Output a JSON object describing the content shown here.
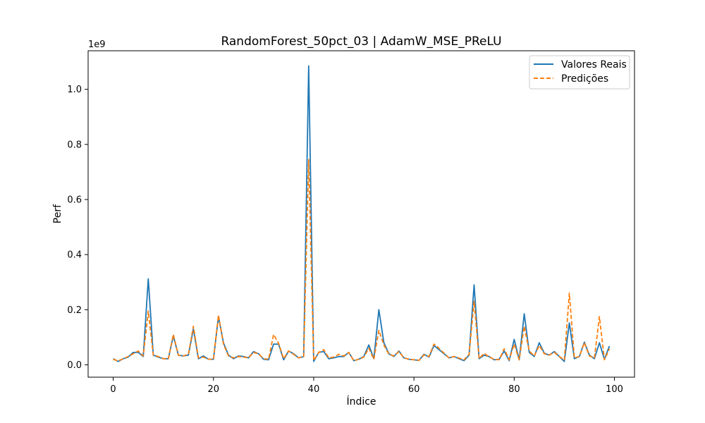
{
  "chart_data": {
    "type": "line",
    "title": "RandomForest_50pct_03 | AdamW_MSE_PReLU",
    "xlabel": "Índice",
    "ylabel": "Perf",
    "y_offset_label": "1e9",
    "xlim": [
      -5,
      104
    ],
    "ylim": [
      -0.045,
      1.14
    ],
    "x_ticks": [
      0,
      20,
      40,
      60,
      80,
      100
    ],
    "x_tick_labels": [
      "0",
      "20",
      "40",
      "60",
      "80",
      "100"
    ],
    "y_ticks": [
      0.0,
      0.2,
      0.4,
      0.6,
      0.8,
      1.0
    ],
    "y_tick_labels": [
      "0.0",
      "0.2",
      "0.4",
      "0.6",
      "0.8",
      "1.0"
    ],
    "grid": false,
    "legend_position": "top-right",
    "colors": {
      "real": "#1f77b4",
      "pred": "#ff7f0e"
    },
    "x": [
      0,
      1,
      2,
      3,
      4,
      5,
      6,
      7,
      8,
      9,
      10,
      11,
      12,
      13,
      14,
      15,
      16,
      17,
      18,
      19,
      20,
      21,
      22,
      23,
      24,
      25,
      26,
      27,
      28,
      29,
      30,
      31,
      32,
      33,
      34,
      35,
      36,
      37,
      38,
      39,
      40,
      41,
      42,
      43,
      44,
      45,
      46,
      47,
      48,
      49,
      50,
      51,
      52,
      53,
      54,
      55,
      56,
      57,
      58,
      59,
      60,
      61,
      62,
      63,
      64,
      65,
      66,
      67,
      68,
      69,
      70,
      71,
      72,
      73,
      74,
      75,
      76,
      77,
      78,
      79,
      80,
      81,
      82,
      83,
      84,
      85,
      86,
      87,
      88,
      89,
      90,
      91,
      92,
      93,
      94,
      95,
      96,
      97,
      98,
      99
    ],
    "series": [
      {
        "name": "Valores Reais",
        "style": "solid",
        "values": [
          0.022,
          0.012,
          0.022,
          0.028,
          0.045,
          0.045,
          0.03,
          0.312,
          0.035,
          0.028,
          0.022,
          0.022,
          0.105,
          0.035,
          0.032,
          0.035,
          0.13,
          0.022,
          0.032,
          0.02,
          0.02,
          0.175,
          0.08,
          0.035,
          0.022,
          0.032,
          0.03,
          0.025,
          0.048,
          0.04,
          0.02,
          0.018,
          0.075,
          0.075,
          0.018,
          0.05,
          0.04,
          0.025,
          0.03,
          1.085,
          0.012,
          0.045,
          0.048,
          0.022,
          0.025,
          0.03,
          0.03,
          0.045,
          0.015,
          0.02,
          0.03,
          0.072,
          0.022,
          0.2,
          0.08,
          0.04,
          0.03,
          0.05,
          0.025,
          0.02,
          0.018,
          0.016,
          0.038,
          0.028,
          0.07,
          0.055,
          0.04,
          0.025,
          0.03,
          0.022,
          0.015,
          0.035,
          0.29,
          0.022,
          0.035,
          0.03,
          0.018,
          0.02,
          0.05,
          0.015,
          0.092,
          0.018,
          0.185,
          0.045,
          0.03,
          0.08,
          0.042,
          0.035,
          0.048,
          0.03,
          0.012,
          0.152,
          0.022,
          0.03,
          0.082,
          0.035,
          0.022,
          0.08,
          0.02,
          0.068
        ]
      },
      {
        "name": "Predições",
        "style": "dashed",
        "values": [
          0.02,
          0.014,
          0.022,
          0.03,
          0.04,
          0.05,
          0.032,
          0.195,
          0.035,
          0.03,
          0.022,
          0.022,
          0.11,
          0.035,
          0.032,
          0.038,
          0.14,
          0.025,
          0.028,
          0.02,
          0.02,
          0.18,
          0.075,
          0.032,
          0.025,
          0.03,
          0.028,
          0.025,
          0.045,
          0.04,
          0.022,
          0.02,
          0.11,
          0.078,
          0.022,
          0.05,
          0.038,
          0.025,
          0.03,
          0.745,
          0.015,
          0.045,
          0.055,
          0.025,
          0.028,
          0.038,
          0.032,
          0.045,
          0.015,
          0.02,
          0.028,
          0.06,
          0.02,
          0.125,
          0.072,
          0.038,
          0.032,
          0.048,
          0.025,
          0.02,
          0.018,
          0.016,
          0.036,
          0.03,
          0.075,
          0.06,
          0.042,
          0.025,
          0.03,
          0.024,
          0.018,
          0.038,
          0.23,
          0.022,
          0.042,
          0.028,
          0.02,
          0.018,
          0.058,
          0.018,
          0.075,
          0.018,
          0.14,
          0.05,
          0.032,
          0.07,
          0.04,
          0.035,
          0.045,
          0.03,
          0.018,
          0.26,
          0.025,
          0.03,
          0.08,
          0.032,
          0.025,
          0.175,
          0.018,
          0.058
        ]
      }
    ]
  }
}
